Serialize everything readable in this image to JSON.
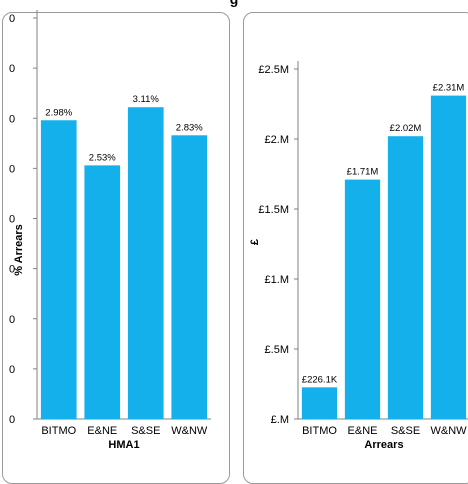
{
  "page_title": "g",
  "colors": {
    "bar": "#13b0ec",
    "axis": "#808080",
    "border": "#9a9a9a"
  },
  "chart_data": [
    {
      "type": "bar",
      "title": "",
      "xlabel": "HMA1",
      "ylabel": "% Arrears",
      "categories": [
        "BITMO",
        "E&NE",
        "S&SE",
        "W&NW"
      ],
      "values": [
        2.98,
        2.53,
        3.11,
        2.83
      ],
      "data_labels": [
        "2.98%",
        "2.53%",
        "3.11%",
        "2.83%"
      ],
      "y_tick_labels": [
        "0",
        "0",
        "0",
        "0",
        "0",
        "0",
        "0",
        "0",
        "0"
      ],
      "ylim": [
        0,
        4
      ],
      "grid": false,
      "legend": "none"
    },
    {
      "type": "bar",
      "title": "",
      "xlabel": "Arrears",
      "ylabel": "£",
      "categories": [
        "BITMO",
        "E&NE",
        "S&SE",
        "W&NW"
      ],
      "values": [
        226100,
        1710000,
        2020000,
        2310000
      ],
      "data_labels": [
        "£226.1K",
        "£1.71M",
        "£2.02M",
        "£2.31M"
      ],
      "y_tick_labels": [
        "£.M",
        "£.5M",
        "£1.M",
        "£1.5M",
        "£2.M",
        "£2.5M"
      ],
      "ylim": [
        0,
        2500000
      ],
      "grid": false,
      "legend": "none"
    }
  ]
}
